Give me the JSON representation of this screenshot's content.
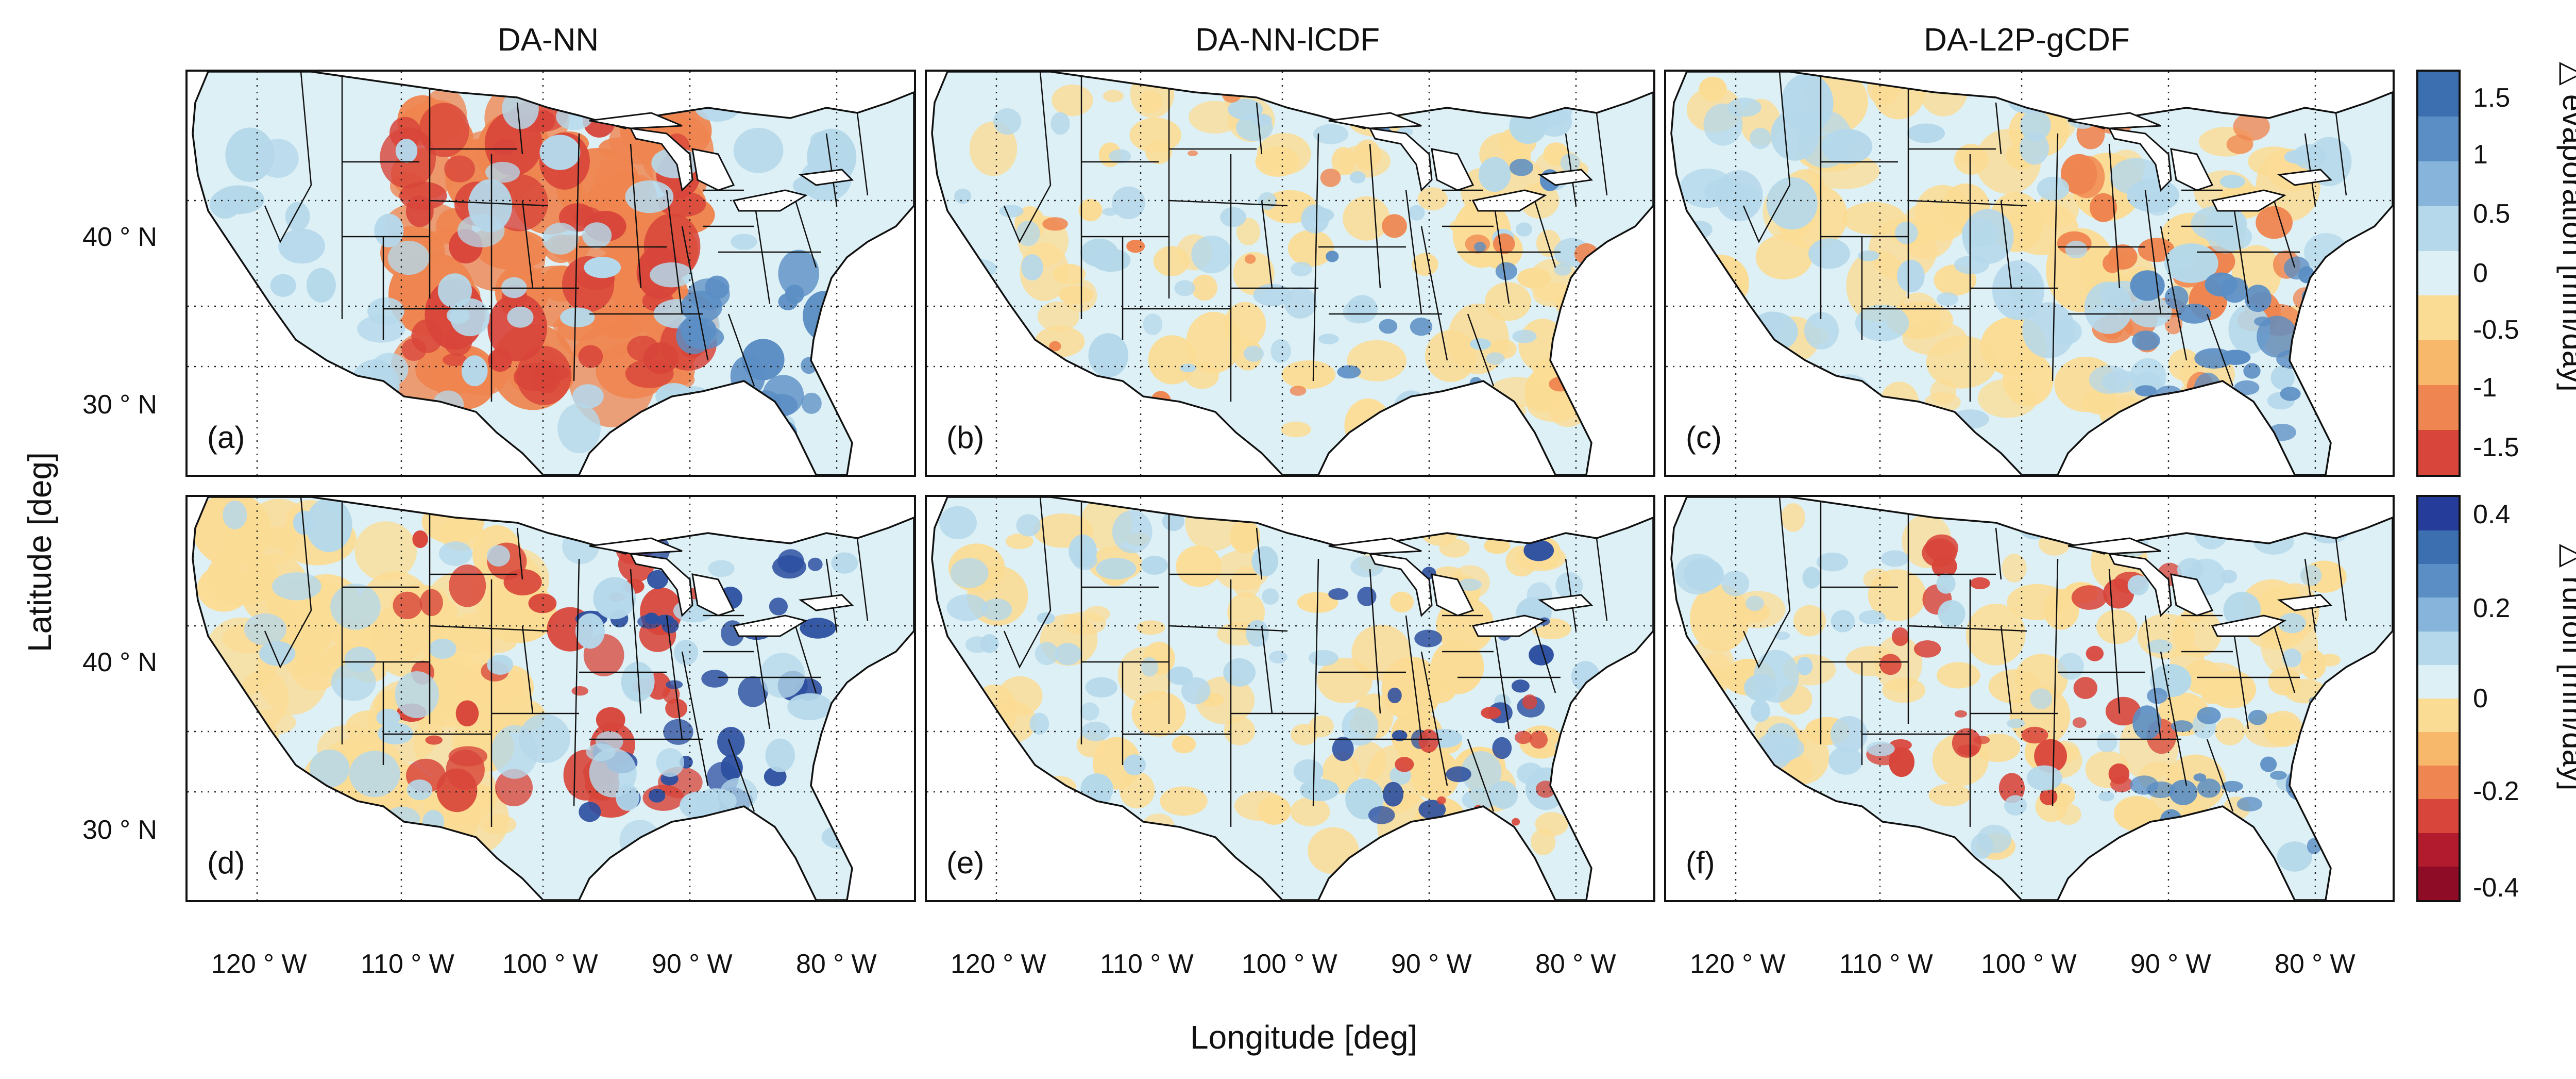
{
  "columns": [
    "DA-NN",
    "DA-NN-lCDF",
    "DA-L2P-gCDF"
  ],
  "panel_labels": [
    "(a)",
    "(b)",
    "(c)",
    "(d)",
    "(e)",
    "(f)"
  ],
  "rows": [
    {
      "variable": "evaporation",
      "colorbar_label": "△ evaporation [mm/day]",
      "colorbar_ticks": [
        "1.5",
        "1",
        "0.5",
        "0",
        "-0.5",
        "-1",
        "-1.5"
      ],
      "colorbar_range": [
        -1.75,
        1.75
      ]
    },
    {
      "variable": "runoff",
      "colorbar_label": "△ runoff [mm/day]",
      "colorbar_ticks": [
        "0.4",
        "0.2",
        "0",
        "-0.2",
        "-0.4"
      ],
      "colorbar_range": [
        -0.44,
        0.44
      ]
    }
  ],
  "colorbar_colors": [
    "#3c6fb0",
    "#5b8ec4",
    "#86b4da",
    "#b5d8ea",
    "#ddf0f6",
    "#fbdc95",
    "#f7b86b",
    "#ef8550",
    "#d8453a",
    "#b21a2e"
  ],
  "runoff_colorbar_colors": [
    "#263c9b",
    "#3c6fb0",
    "#5b8ec4",
    "#86b4da",
    "#b5d8ea",
    "#ddf0f6",
    "#fbdc95",
    "#f7b86b",
    "#ef8550",
    "#d8453a",
    "#b21a2e",
    "#8f0c27"
  ],
  "latitude_ticks": [
    "40 ° N",
    "30 ° N"
  ],
  "longitude_ticks": [
    "120 ° W",
    "110 ° W",
    "100 ° W",
    "90 ° W",
    "80 ° W"
  ],
  "y_axis_label": "Latitude [deg]",
  "x_axis_label": "Longitude [deg]",
  "map_colors": {
    "ocean": "#ffffff",
    "land_base": "#ddf0f6",
    "border": "#111111",
    "neg_strong": "#d8453a",
    "neg_mid": "#ef8550",
    "neg_weak": "#fbdc95",
    "pos_weak": "#b5d8ea",
    "pos_mid": "#5b8ec4",
    "pos_strong": "#2c4fa0"
  }
}
